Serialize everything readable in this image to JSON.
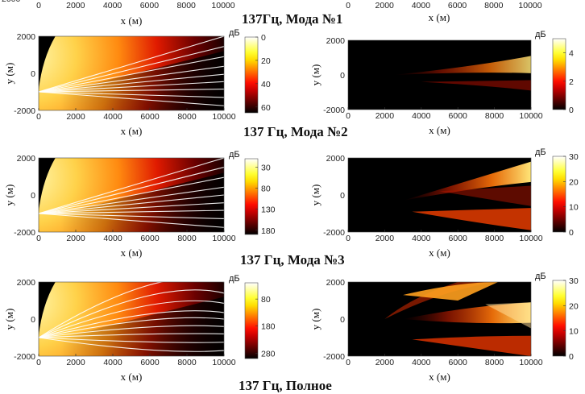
{
  "section_titles": [
    "137Гц, Мода №1",
    "137 Гц, Мода №2",
    "137 Гц, Мода №3",
    "137 Гц, Полное"
  ],
  "cut_top": {
    "x_ticks": [
      "0",
      "2000",
      "4000",
      "6000",
      "8000",
      "10000"
    ],
    "x_ticks_right": [
      "0",
      "2000",
      "4000",
      "6000",
      "8000",
      "10000"
    ],
    "xlabel": "x (м)",
    "partial_tick": "2000"
  },
  "chart_data": [
    {
      "id": "mode1-rays",
      "type": "heatmap",
      "xlabel": "x (м)",
      "ylabel": "y (м)",
      "xlim": [
        0,
        10000
      ],
      "ylim": [
        -2000,
        2000
      ],
      "x_ticks": [
        0,
        2000,
        4000,
        6000,
        8000,
        10000
      ],
      "y_ticks": [
        2000,
        0,
        -2000
      ],
      "colorbar": {
        "unit": "дБ",
        "ticks": [
          0,
          20,
          40,
          60
        ],
        "range": [
          0,
          65
        ],
        "reversed": true
      },
      "colormap": "hot",
      "overlay": "rays",
      "ray_source": [
        0,
        -1000
      ],
      "ray_end_y": [
        2000,
        1450,
        900,
        380,
        -50,
        -450,
        -850,
        -1300,
        -1750
      ],
      "ray_bend": 0
    },
    {
      "id": "mode1-diff",
      "type": "heatmap",
      "xlabel": "x (м)",
      "ylabel": "y (м)",
      "xlim": [
        0,
        10000
      ],
      "ylim": [
        -2000,
        2000
      ],
      "x_ticks": [
        0,
        2000,
        4000,
        6000,
        8000,
        10000
      ],
      "y_ticks": [
        2000,
        0,
        -2000
      ],
      "colorbar": {
        "unit": "дБ",
        "ticks": [
          0,
          2,
          4
        ],
        "range": [
          0,
          5
        ],
        "reversed": false
      },
      "colormap": "hot"
    },
    {
      "id": "mode2-rays",
      "type": "heatmap",
      "xlabel": "x (м)",
      "ylabel": "y (м)",
      "xlim": [
        0,
        10000
      ],
      "ylim": [
        -2000,
        2000
      ],
      "x_ticks": [
        0,
        2000,
        4000,
        6000,
        8000,
        10000
      ],
      "y_ticks": [
        2000,
        0,
        -2000
      ],
      "colorbar": {
        "unit": "дБ",
        "ticks": [
          30,
          80,
          130,
          180
        ],
        "range": [
          10,
          190
        ],
        "reversed": true
      },
      "colormap": "hot",
      "overlay": "rays",
      "ray_source": [
        0,
        -1000
      ],
      "ray_end_y": [
        2000,
        1500,
        950,
        420,
        0,
        -420,
        -830,
        -1280,
        -1750
      ],
      "ray_bend": 0
    },
    {
      "id": "mode2-diff",
      "type": "heatmap",
      "xlabel": "x (м)",
      "ylabel": "y (м)",
      "xlim": [
        0,
        10000
      ],
      "ylim": [
        -2000,
        2000
      ],
      "x_ticks": [
        0,
        2000,
        4000,
        6000,
        8000,
        10000
      ],
      "y_ticks": [
        2000,
        0,
        -2000
      ],
      "colorbar": {
        "unit": "дБ",
        "ticks": [
          0,
          10,
          20,
          30
        ],
        "range": [
          0,
          30
        ],
        "reversed": false
      },
      "colormap": "hot"
    },
    {
      "id": "mode3-rays",
      "type": "heatmap",
      "xlabel": "x (м)",
      "ylabel": "y (м)",
      "xlim": [
        0,
        10000
      ],
      "ylim": [
        -2000,
        2000
      ],
      "x_ticks": [
        0,
        2000,
        4000,
        6000,
        8000,
        10000
      ],
      "y_ticks": [
        2000,
        0,
        -2000
      ],
      "colorbar": {
        "unit": "дБ",
        "ticks": [
          80,
          180,
          280
        ],
        "range": [
          20,
          300
        ],
        "reversed": true
      },
      "colormap": "hot",
      "overlay": "rays",
      "ray_source": [
        0,
        -1000
      ],
      "ray_end_y": [
        2000,
        1400,
        850,
        350,
        0,
        -400,
        -800,
        -1250,
        -1700
      ],
      "ray_bend": 1
    },
    {
      "id": "mode3-diff",
      "type": "heatmap",
      "xlabel": "x (м)",
      "ylabel": "y (м)",
      "xlim": [
        0,
        10000
      ],
      "ylim": [
        -2000,
        2000
      ],
      "x_ticks": [
        0,
        2000,
        4000,
        6000,
        8000,
        10000
      ],
      "y_ticks": [
        2000,
        0,
        -2000
      ],
      "colorbar": {
        "unit": "дБ",
        "ticks": [
          0,
          10,
          20,
          30
        ],
        "range": [
          0,
          30
        ],
        "reversed": false
      },
      "colormap": "hot"
    }
  ]
}
